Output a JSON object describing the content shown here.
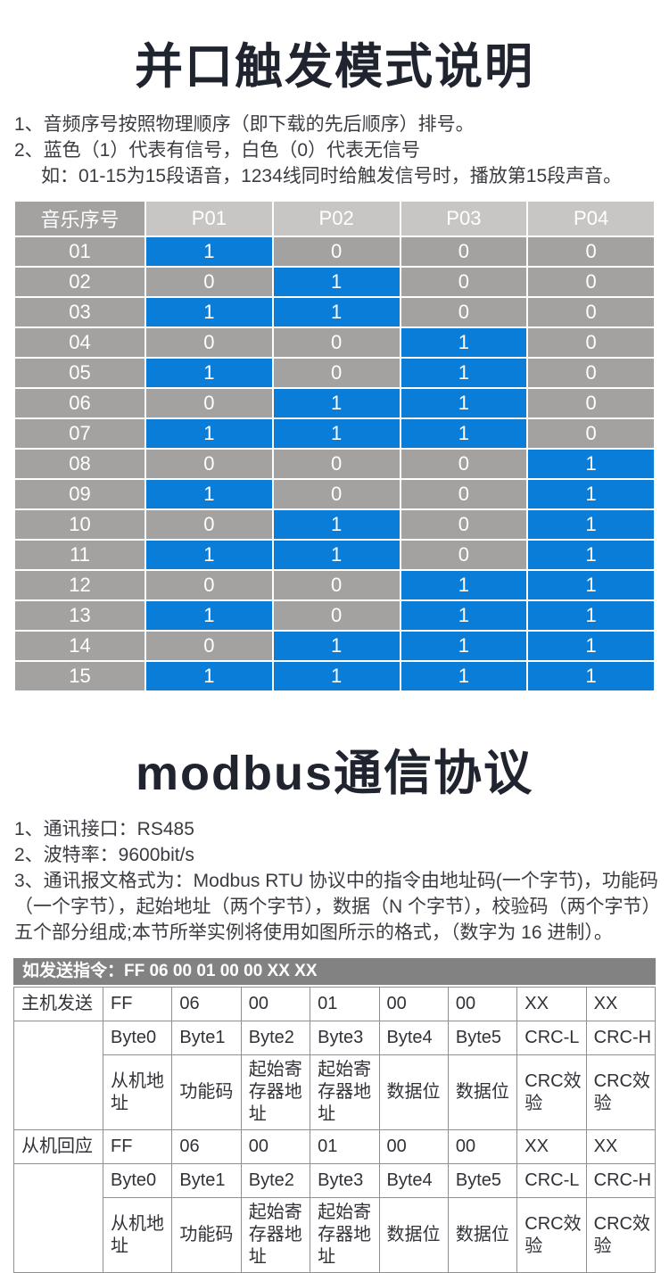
{
  "page": {
    "title1": "并口触发模式说明",
    "notes1": [
      "1、音频序号按照物理顺序（即下载的先后顺序）排号。",
      "2、蓝色（1）代表有信号，白色（0）代表无信号",
      "如：01-15为15段语音，1234线同时给触发信号时，播放第15段声音。"
    ],
    "title2": "modbus通信协议",
    "notes2": [
      "1、通讯接口：RS485",
      "2、波特率：9600bit/s",
      "3、通讯报文格式为：Modbus RTU 协议中的指令由地址码(一个字节)，功能码",
      "（一个字节），起始地址（两个字节），数据（N 个字节），校验码（两个字节）",
      "五个部分组成;本节所举实例将使用如图所示的格式，（数字为 16 进制）。"
    ]
  },
  "trigger_table": {
    "headers": [
      "音乐序号",
      "P01",
      "P02",
      "P03",
      "P04"
    ],
    "legend": {
      "signal_on": "蓝色（1）代表有信号",
      "signal_off": "白色（0）代表无信号"
    },
    "rows": [
      {
        "id": "01",
        "values": [
          1,
          0,
          0,
          0
        ]
      },
      {
        "id": "02",
        "values": [
          0,
          1,
          0,
          0
        ]
      },
      {
        "id": "03",
        "values": [
          1,
          1,
          0,
          0
        ]
      },
      {
        "id": "04",
        "values": [
          0,
          0,
          1,
          0
        ]
      },
      {
        "id": "05",
        "values": [
          1,
          0,
          1,
          0
        ]
      },
      {
        "id": "06",
        "values": [
          0,
          1,
          1,
          0
        ]
      },
      {
        "id": "07",
        "values": [
          1,
          1,
          1,
          0
        ]
      },
      {
        "id": "08",
        "values": [
          0,
          0,
          0,
          1
        ]
      },
      {
        "id": "09",
        "values": [
          1,
          0,
          0,
          1
        ]
      },
      {
        "id": "10",
        "values": [
          0,
          1,
          0,
          1
        ]
      },
      {
        "id": "11",
        "values": [
          1,
          1,
          0,
          1
        ]
      },
      {
        "id": "12",
        "values": [
          0,
          0,
          1,
          1
        ]
      },
      {
        "id": "13",
        "values": [
          1,
          0,
          1,
          1
        ]
      },
      {
        "id": "14",
        "values": [
          0,
          1,
          1,
          1
        ]
      },
      {
        "id": "15",
        "values": [
          1,
          1,
          1,
          1
        ]
      }
    ]
  },
  "modbus_table": {
    "caption": "如发送指令：FF 06 00 01 00 00 XX XX",
    "sections": [
      {
        "label": "主机发送",
        "hex": [
          "FF",
          "06",
          "00",
          "01",
          "00",
          "00",
          "XX",
          "XX"
        ],
        "bytes": [
          "Byte0",
          "Byte1",
          "Byte2",
          "Byte3",
          "Byte4",
          "Byte5",
          "CRC-L",
          "CRC-H"
        ],
        "desc": [
          "从机地址",
          "功能码",
          "起始寄存器地址",
          "起始寄存器地址",
          "数据位",
          "数据位",
          "CRC效验",
          "CRC效验"
        ]
      },
      {
        "label": "从机回应",
        "hex": [
          "FF",
          "06",
          "00",
          "01",
          "00",
          "00",
          "XX",
          "XX"
        ],
        "bytes": [
          "Byte0",
          "Byte1",
          "Byte2",
          "Byte3",
          "Byte4",
          "Byte5",
          "CRC-L",
          "CRC-H"
        ],
        "desc": [
          "从机地址",
          "功能码",
          "起始寄存器地址",
          "起始寄存器地址",
          "数据位",
          "数据位",
          "CRC效验",
          "CRC效验"
        ]
      }
    ]
  },
  "colors": {
    "signal_on_blue": "#0a7dd8",
    "table_gray": "#a3a2a1",
    "header_light_gray": "#c8c6c5",
    "caption_bar_gray": "#828282",
    "title_text": "#20242f",
    "body_text": "#3a3c42",
    "modbus_border": "#8f8f8f"
  }
}
